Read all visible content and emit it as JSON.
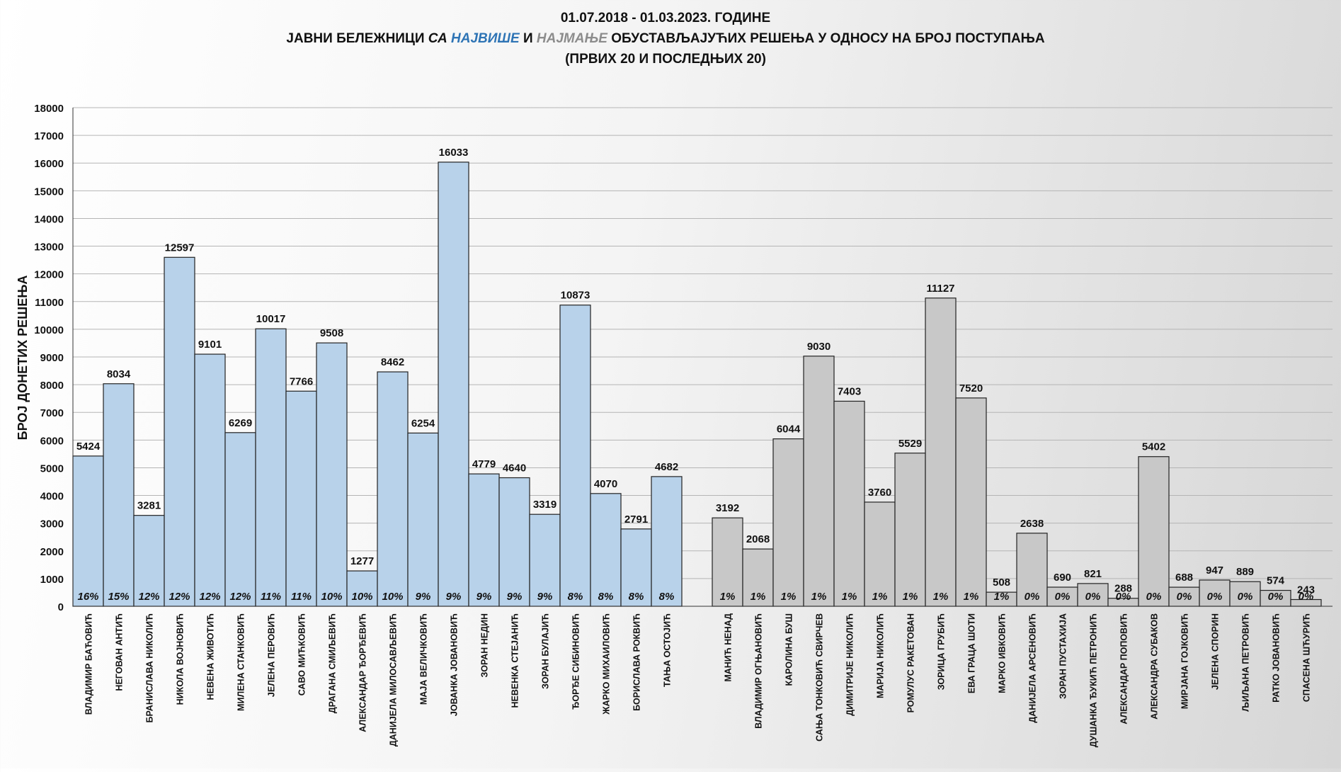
{
  "chart_data": {
    "type": "bar",
    "title_line1": "01.07.2018  - 01.03.2023. ГОДИНЕ",
    "title_line2": {
      "part1": "ЈАВНИ БЕЛЕЖНИЦИ ",
      "part2": "СА ",
      "part3": "НАЈВИШЕ",
      "part4": " И ",
      "part5": "НАЈМАЊЕ",
      "part6": " ОБУСТАВЉАЈУЋИХ РЕШЕЊА У ОДНОСУ НА БРОЈ ПОСТУПАЊА"
    },
    "title_line3": "(ПРВИХ 20 И ПОСЛЕДЊИХ 20)",
    "ylabel": "БРОЈ ДОНЕТИХ РЕШЕЊА",
    "ylim": [
      0,
      18000
    ],
    "yticks": [
      0,
      1000,
      2000,
      3000,
      4000,
      5000,
      6000,
      7000,
      8000,
      9000,
      10000,
      11000,
      12000,
      13000,
      14000,
      15000,
      16000,
      17000,
      18000
    ],
    "grid": true,
    "colors": {
      "top": "#b8d2ea",
      "bottom": "#c8c8c8",
      "accent_blue": "#2e74b5",
      "accent_gray": "#8c8c8c"
    },
    "groups": [
      {
        "name": "top",
        "bars": [
          {
            "label": "ВЛАДИМИР БАЋОВИЋ",
            "value": 5424,
            "pct": "16%"
          },
          {
            "label": "НЕГОВАН АНТИЋ",
            "value": 8034,
            "pct": "15%"
          },
          {
            "label": "БРАНИСЛАВА НИКОЛИЋ",
            "value": 3281,
            "pct": "12%"
          },
          {
            "label": "НИКОЛА ВОЈНОВИЋ",
            "value": 12597,
            "pct": "12%"
          },
          {
            "label": "НЕВЕНА ЖИВОТИЋ",
            "value": 9101,
            "pct": "12%"
          },
          {
            "label": "МИЛЕНА СТАНКОВИЋ",
            "value": 6269,
            "pct": "12%"
          },
          {
            "label": "ЈЕЛЕНА ПЕРОВИЋ",
            "value": 10017,
            "pct": "11%"
          },
          {
            "label": "САВО МИЋКОВИЋ",
            "value": 7766,
            "pct": "11%"
          },
          {
            "label": "ДРАГАНА СМИЉЕВИЋ",
            "value": 9508,
            "pct": "10%"
          },
          {
            "label": "АЛЕКСАНДАР ЂОРЂЕВИЋ",
            "value": 1277,
            "pct": "10%"
          },
          {
            "label": "ДАНИЈЕЛА МИЛОСАВЉЕВИЋ",
            "value": 8462,
            "pct": "10%"
          },
          {
            "label": "МАЈА ВЕЛИЧКОВИЋ",
            "value": 6254,
            "pct": "9%"
          },
          {
            "label": "ЈОВАНКА ЈОВАНОВИЋ",
            "value": 16033,
            "pct": "9%"
          },
          {
            "label": "ЗОРАН НЕДИН",
            "value": 4779,
            "pct": "9%"
          },
          {
            "label": "НЕВЕНКА СТЕЈАНИЋ",
            "value": 4640,
            "pct": "9%"
          },
          {
            "label": "ЗОРАН БУЛАЈИЋ",
            "value": 3319,
            "pct": "9%"
          },
          {
            "label": "ЂОРЂЕ СИБИНОВИЋ",
            "value": 10873,
            "pct": "8%"
          },
          {
            "label": "ЖАРКО МИХАИЛОВИЋ",
            "value": 4070,
            "pct": "8%"
          },
          {
            "label": "БОРИСЛАВА РОКВИЋ",
            "value": 2791,
            "pct": "8%"
          },
          {
            "label": "ТАЊА ОСТОЈИЋ",
            "value": 4682,
            "pct": "8%"
          }
        ]
      },
      {
        "name": "bottom",
        "bars": [
          {
            "label": "МАНИЋ  НЕНАД",
            "value": 3192,
            "pct": "1%"
          },
          {
            "label": "ВЛАДИМИР ОГЊАНОВИЋ",
            "value": 2068,
            "pct": "1%"
          },
          {
            "label": "КАРОЛИНА БУШ",
            "value": 6044,
            "pct": "1%"
          },
          {
            "label": "САЊА ТОНКОВИЋ СВИРЧЕВ",
            "value": 9030,
            "pct": "1%"
          },
          {
            "label": "ДИМИТРИЈЕ НИКОЛИЋ",
            "value": 7403,
            "pct": "1%"
          },
          {
            "label": "МАРИЈА НИКОЛИЋ",
            "value": 3760,
            "pct": "1%"
          },
          {
            "label": "РОМУЛУС РАКЕТОВАН",
            "value": 5529,
            "pct": "1%"
          },
          {
            "label": "ЗОРИЦА ГРУБИЋ",
            "value": 11127,
            "pct": "1%"
          },
          {
            "label": "ЕВА ГРАЦА ШОТИ",
            "value": 7520,
            "pct": "1%"
          },
          {
            "label": "МАРКО ИВКОВИЋ",
            "value": 508,
            "pct": "1%"
          },
          {
            "label": "ДАНИЈЕЛА АРСЕНОВИЋ",
            "value": 2638,
            "pct": "0%"
          },
          {
            "label": "ЗОРАН ПУСТАХИЈА",
            "value": 690,
            "pct": "0%"
          },
          {
            "label": "ДУШАНКА ЂУКИЋ ПЕТРОНИЋ",
            "value": 821,
            "pct": "0%"
          },
          {
            "label": "АЛЕКСАНДАР ПОПОВИЋ",
            "value": 288,
            "pct": "0%"
          },
          {
            "label": "АЛЕКСАНДРА СУБАКОВ",
            "value": 5402,
            "pct": "0%"
          },
          {
            "label": "МИРЈАНА ГОЈКОВИЋ",
            "value": 688,
            "pct": "0%"
          },
          {
            "label": "ЈЕЛЕНА СПОРИН",
            "value": 947,
            "pct": "0%"
          },
          {
            "label": "ЉИЉАНА ПЕТРОВИЋ",
            "value": 889,
            "pct": "0%"
          },
          {
            "label": "РАТКО ЈОВАНОВИЋ",
            "value": 574,
            "pct": "0%"
          },
          {
            "label": "СПАСЕНА ШЋУРИЋ",
            "value": 243,
            "pct": "0%"
          }
        ]
      }
    ]
  }
}
